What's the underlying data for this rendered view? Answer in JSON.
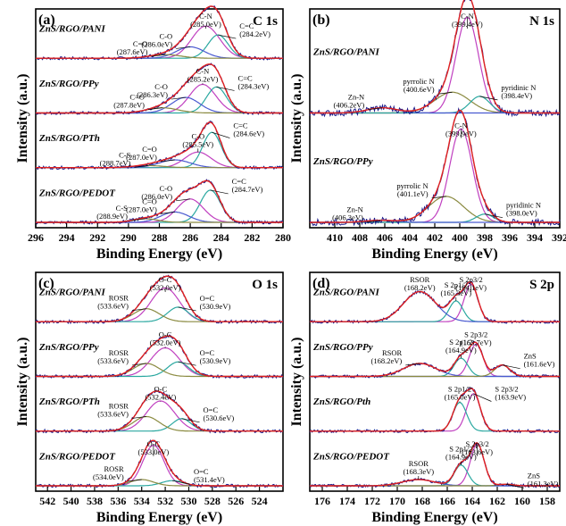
{
  "chart_data": [
    {
      "type": "line",
      "panel_tag": "(a)",
      "title": "C 1s",
      "xlabel": "Binding Energy (eV)",
      "ylabel": "Intensity (a.u.)",
      "xlim": [
        296,
        280
      ],
      "xticks": [
        296,
        294,
        292,
        290,
        288,
        286,
        284,
        282,
        280
      ],
      "samples": [
        {
          "name": "ZnS/RGO/PANI",
          "peaks": [
            {
              "label": "C-N",
              "energy": "(285.0eV)",
              "center": 285.0,
              "height": 0.62,
              "width": 0.9,
              "color": "#c040c0"
            },
            {
              "label": "C=C",
              "energy": "(284.2eV)",
              "center": 284.2,
              "height": 0.45,
              "width": 0.65,
              "color": "#2aa8a0"
            },
            {
              "label": "C-O",
              "energy": "(286.0eV)",
              "center": 286.0,
              "height": 0.22,
              "width": 0.9,
              "color": "#4a5ad0"
            },
            {
              "label": "C=O",
              "energy": "(287.6eV)",
              "center": 287.6,
              "height": 0.07,
              "width": 1.0,
              "color": "#8a8a40"
            }
          ]
        },
        {
          "name": "ZnS/RGO/PPy",
          "peaks": [
            {
              "label": "C-N",
              "energy": "(285.2eV)",
              "center": 285.2,
              "height": 0.55,
              "width": 0.85,
              "color": "#c040c0"
            },
            {
              "label": "C=C",
              "energy": "(284.3eV)",
              "center": 284.3,
              "height": 0.5,
              "width": 0.65,
              "color": "#2aa8a0"
            },
            {
              "label": "C-O",
              "energy": "(286.3eV)",
              "center": 286.3,
              "height": 0.3,
              "width": 0.9,
              "color": "#4a5ad0"
            },
            {
              "label": "C=O",
              "energy": "(287.8eV)",
              "center": 287.8,
              "height": 0.1,
              "width": 1.0,
              "color": "#8a8a40"
            }
          ]
        },
        {
          "name": "ZnS/RGO/PTh",
          "peaks": [
            {
              "label": "C-O",
              "energy": "(285.5eV)",
              "center": 285.5,
              "height": 0.3,
              "width": 0.85,
              "color": "#c040c0"
            },
            {
              "label": "C=C",
              "energy": "(284.6eV)",
              "center": 284.6,
              "height": 0.68,
              "width": 0.6,
              "color": "#2aa8a0"
            },
            {
              "label": "C=O",
              "energy": "(287.0eV)",
              "center": 287.0,
              "height": 0.15,
              "width": 1.0,
              "color": "#4a5ad0"
            },
            {
              "label": "C-S",
              "energy": "(288.7eV)",
              "center": 288.7,
              "height": 0.04,
              "width": 1.0,
              "color": "#8a8a40"
            }
          ]
        },
        {
          "name": "ZnS/RGO/PEDOT",
          "peaks": [
            {
              "label": "C=C",
              "energy": "(284.7eV)",
              "center": 284.7,
              "height": 0.62,
              "width": 0.65,
              "color": "#2aa8a0"
            },
            {
              "label": "C-O",
              "energy": "(286.0eV)",
              "center": 286.0,
              "height": 0.45,
              "width": 0.85,
              "color": "#c040c0"
            },
            {
              "label": "C=O",
              "energy": "(287.0eV)",
              "center": 287.0,
              "height": 0.2,
              "width": 0.9,
              "color": "#4a5ad0"
            },
            {
              "label": "C-S",
              "energy": "(288.9eV)",
              "center": 288.9,
              "height": 0.07,
              "width": 0.8,
              "color": "#8a8a40"
            }
          ]
        }
      ]
    },
    {
      "type": "line",
      "panel_tag": "(b)",
      "title": "N 1s",
      "xlabel": "Binding Energy (eV)",
      "ylabel": "Intensity (a.u.)",
      "xlim": [
        412,
        392
      ],
      "xticks": [
        410,
        408,
        406,
        404,
        402,
        400,
        398,
        396,
        394,
        392
      ],
      "samples": [
        {
          "name": "ZnS/RGO/PANI",
          "peaks": [
            {
              "label": "C-N",
              "energy": "(399.4eV)",
              "center": 399.4,
              "height": 0.92,
              "width": 0.9,
              "color": "#c040c0"
            },
            {
              "label": "pyrrolic N",
              "energy": "(400.6eV)",
              "center": 400.6,
              "height": 0.2,
              "width": 1.4,
              "color": "#8a8a40"
            },
            {
              "label": "pyridinic N",
              "energy": "(398.4eV)",
              "center": 398.4,
              "height": 0.16,
              "width": 0.8,
              "color": "#2aa8a0"
            },
            {
              "label": "Zn-N",
              "energy": "(406.2eV)",
              "center": 406.2,
              "height": 0.05,
              "width": 1.2,
              "color": "#4a5ad0"
            }
          ]
        },
        {
          "name": "ZnS/RGO/PPy",
          "peaks": [
            {
              "label": "C-N",
              "energy": "(399.9eV)",
              "center": 399.9,
              "height": 0.9,
              "width": 0.9,
              "color": "#c040c0"
            },
            {
              "label": "pyrrolic N",
              "energy": "(401.1eV)",
              "center": 401.1,
              "height": 0.25,
              "width": 1.4,
              "color": "#8a8a40"
            },
            {
              "label": "pyridinic N",
              "energy": "(398.0eV)",
              "center": 398.0,
              "height": 0.08,
              "width": 0.7,
              "color": "#2aa8a0"
            },
            {
              "label": "Zn-N",
              "energy": "(406.3eV)",
              "center": 406.3,
              "height": 0.02,
              "width": 1.2,
              "color": "#4a5ad0"
            }
          ]
        }
      ]
    },
    {
      "type": "line",
      "panel_tag": "(c)",
      "title": "O 1s",
      "xlabel": "Binding Energy (eV)",
      "ylabel": "Intensity (a.u.)",
      "xlim": [
        543,
        522
      ],
      "xticks": [
        542,
        540,
        538,
        536,
        534,
        532,
        530,
        528,
        526,
        524
      ],
      "samples": [
        {
          "name": "ZnS/RGO/PANI",
          "peaks": [
            {
              "label": "O-C",
              "energy": "(532.0eV)",
              "center": 532.0,
              "height": 0.65,
              "width": 1.2,
              "color": "#c040c0"
            },
            {
              "label": "O=C",
              "energy": "(530.9eV)",
              "center": 530.9,
              "height": 0.28,
              "width": 0.9,
              "color": "#2aa8a0"
            },
            {
              "label": "ROSR",
              "energy": "(533.6eV)",
              "center": 533.6,
              "height": 0.25,
              "width": 1.1,
              "color": "#8a8a40"
            }
          ]
        },
        {
          "name": "ZnS/RGO/PPy",
          "peaks": [
            {
              "label": "O-C",
              "energy": "(532.0eV)",
              "center": 532.0,
              "height": 0.55,
              "width": 1.2,
              "color": "#c040c0"
            },
            {
              "label": "O=C",
              "energy": "(530.9eV)",
              "center": 530.9,
              "height": 0.28,
              "width": 0.9,
              "color": "#2aa8a0"
            },
            {
              "label": "ROSR",
              "energy": "(533.6eV)",
              "center": 533.6,
              "height": 0.25,
              "width": 1.1,
              "color": "#8a8a40"
            }
          ]
        },
        {
          "name": "ZnS/RGO/PTh",
          "peaks": [
            {
              "label": "O-C",
              "energy": "(532.4eV)",
              "center": 532.4,
              "height": 0.58,
              "width": 1.2,
              "color": "#c040c0"
            },
            {
              "label": "O=C",
              "energy": "(530.6eV)",
              "center": 530.6,
              "height": 0.24,
              "width": 0.8,
              "color": "#2aa8a0"
            },
            {
              "label": "ROSR",
              "energy": "(533.6eV)",
              "center": 533.6,
              "height": 0.28,
              "width": 1.1,
              "color": "#8a8a40"
            }
          ]
        },
        {
          "name": "ZnS/RGO/PEDOT",
          "peaks": [
            {
              "label": "O-C",
              "energy": "(533.0eV)",
              "center": 533.0,
              "height": 0.78,
              "width": 0.9,
              "color": "#c040c0"
            },
            {
              "label": "O=C",
              "energy": "(531.4eV)",
              "center": 531.4,
              "height": 0.1,
              "width": 0.9,
              "color": "#2aa8a0"
            },
            {
              "label": "ROSR",
              "energy": "(534.0eV)",
              "center": 534.0,
              "height": 0.12,
              "width": 1.0,
              "color": "#8a8a40"
            }
          ]
        }
      ]
    },
    {
      "type": "line",
      "panel_tag": "(d)",
      "title": "S 2p",
      "xlabel": "Binding Energy (eV)",
      "ylabel": "Intensity (a.u.)",
      "xlim": [
        177,
        157
      ],
      "xticks": [
        176,
        174,
        172,
        170,
        168,
        166,
        164,
        162,
        160,
        158
      ],
      "samples": [
        {
          "name": "ZnS/RGO/PANI",
          "peaks": [
            {
              "label": "S 2p3/2",
              "energy": "(164.1eV)",
              "center": 164.1,
              "height": 0.72,
              "width": 0.55,
              "color": "#c040c0"
            },
            {
              "label": "S 2p1/2",
              "energy": "(165.3eV)",
              "center": 165.3,
              "height": 0.4,
              "width": 0.55,
              "color": "#2aa8a0"
            },
            {
              "label": "RSOR",
              "energy": "(168.2eV)",
              "center": 168.2,
              "height": 0.58,
              "width": 1.3,
              "color": "#4a5ad0"
            }
          ]
        },
        {
          "name": "ZnS/RGO/PPy",
          "peaks": [
            {
              "label": "S 2p3/2",
              "energy": "(163.7eV)",
              "center": 163.7,
              "height": 0.62,
              "width": 0.55,
              "color": "#c040c0"
            },
            {
              "label": "S 2p1/2",
              "energy": "(164.9eV)",
              "center": 164.9,
              "height": 0.35,
              "width": 0.55,
              "color": "#2aa8a0"
            },
            {
              "label": "RSOR",
              "energy": "(168.2eV)",
              "center": 168.2,
              "height": 0.25,
              "width": 1.3,
              "color": "#4a5ad0"
            },
            {
              "label": "ZnS",
              "energy": "(161.6eV)",
              "center": 161.6,
              "height": 0.22,
              "width": 0.6,
              "color": "#8a8a40"
            }
          ]
        },
        {
          "name": "ZnS/RGO/Pth",
          "peaks": [
            {
              "label": "S 2p3/2",
              "energy": "(163.9eV)",
              "center": 163.9,
              "height": 0.72,
              "width": 0.55,
              "color": "#c040c0"
            },
            {
              "label": "S 2p1/2",
              "energy": "(165.0eV)",
              "center": 165.0,
              "height": 0.55,
              "width": 0.55,
              "color": "#2aa8a0"
            }
          ]
        },
        {
          "name": "ZnS/RGO/PEDOT",
          "peaks": [
            {
              "label": "S 2p3/2",
              "energy": "(163.6eV)",
              "center": 163.6,
              "height": 0.8,
              "width": 0.55,
              "color": "#c040c0"
            },
            {
              "label": "S 2p1/2",
              "energy": "(164.9eV)",
              "center": 164.9,
              "height": 0.4,
              "width": 0.55,
              "color": "#2aa8a0"
            },
            {
              "label": "RSOR",
              "energy": "(168.3eV)",
              "center": 168.3,
              "height": 0.12,
              "width": 1.3,
              "color": "#4a5ad0"
            },
            {
              "label": "ZnS",
              "energy": "(161.3eV)",
              "center": 161.3,
              "height": 0.03,
              "width": 0.6,
              "color": "#8a8a40"
            }
          ]
        }
      ]
    }
  ]
}
